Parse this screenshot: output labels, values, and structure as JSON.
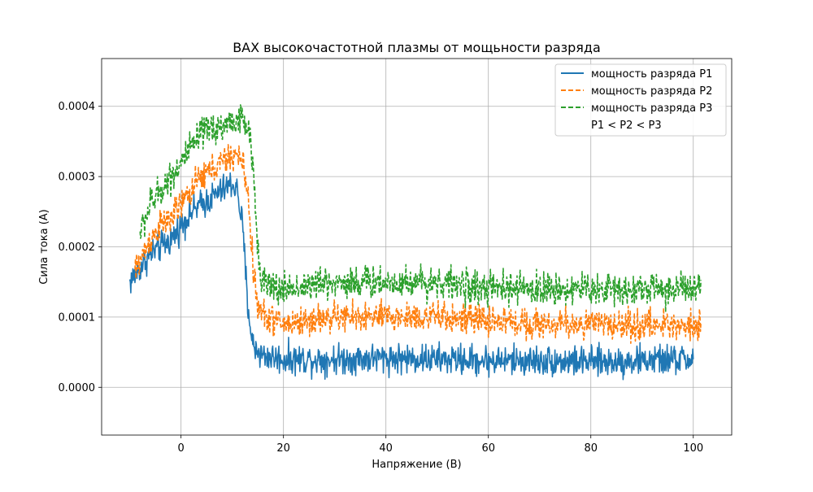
{
  "chart_data": {
    "type": "line",
    "title": "ВАХ высокочастотной плазмы от мощьности разряда",
    "xlabel": "Напряжение (В)",
    "ylabel": "Сила тока (А)",
    "xlim": [
      -15.5,
      107.5
    ],
    "ylim": [
      -6.8e-05,
      0.000468
    ],
    "x_ticks": [
      0,
      20,
      40,
      60,
      80,
      100
    ],
    "x_tick_labels": [
      "0",
      "20",
      "40",
      "60",
      "80",
      "100"
    ],
    "y_ticks": [
      0,
      0.0001,
      0.0002,
      0.0003,
      0.0004
    ],
    "y_tick_labels": [
      "0.0000",
      "0.0001",
      "0.0002",
      "0.0003",
      "0.0004"
    ],
    "grid": true,
    "legend_position": "top-right",
    "legend_note": "P1 < P2 < P3",
    "x_range": [
      -10,
      101.5
    ],
    "series": [
      {
        "name": "мощность разряда P1",
        "color": "#1f77b4",
        "style": "solid",
        "noise_amplitude": 2e-05,
        "x": [
          -10,
          -9,
          -8,
          -6,
          -4,
          -2,
          0,
          2,
          4,
          6,
          8,
          10,
          11,
          12,
          13,
          14,
          16,
          20,
          30,
          40,
          50,
          60,
          70,
          80,
          90,
          100
        ],
        "y": [
          0.00015,
          0.00016,
          0.00017,
          0.00019,
          0.0002,
          0.00021,
          0.00023,
          0.00025,
          0.00026,
          0.00027,
          0.00028,
          0.00029,
          0.00028,
          0.00023,
          0.00012,
          6e-05,
          4.5e-05,
          4e-05,
          4e-05,
          4.2e-05,
          4e-05,
          3.8e-05,
          3.8e-05,
          3.6e-05,
          3.8e-05,
          4e-05
        ]
      },
      {
        "name": "мощность разряда P2",
        "color": "#ff7f0e",
        "style": "dashed",
        "noise_amplitude": 2e-05,
        "x": [
          -9,
          -8,
          -6,
          -4,
          -2,
          0,
          2,
          4,
          6,
          8,
          10,
          11,
          12,
          13,
          14,
          15,
          17,
          20,
          30,
          40,
          50,
          60,
          70,
          80,
          90,
          101.5
        ],
        "y": [
          0.000165,
          0.00018,
          0.00021,
          0.00023,
          0.00024,
          0.00026,
          0.00028,
          0.0003,
          0.00031,
          0.00032,
          0.00033,
          0.00033,
          0.00032,
          0.00028,
          0.00018,
          0.00011,
          0.0001,
          9e-05,
          0.0001,
          0.0001,
          0.0001,
          9.5e-05,
          9e-05,
          9e-05,
          8.8e-05,
          9e-05
        ]
      },
      {
        "name": "мощность разряда P3",
        "color": "#2ca02c",
        "style": "dashed",
        "noise_amplitude": 2.2e-05,
        "x": [
          -8,
          -6,
          -4,
          -2,
          0,
          2,
          4,
          6,
          8,
          10,
          12,
          13,
          14,
          15,
          16,
          18,
          20,
          30,
          40,
          50,
          60,
          70,
          80,
          90,
          101.5
        ],
        "y": [
          0.00022,
          0.00026,
          0.00028,
          0.0003,
          0.00032,
          0.00034,
          0.00036,
          0.00037,
          0.00037,
          0.00038,
          0.00038,
          0.00037,
          0.00032,
          0.0002,
          0.00015,
          0.00014,
          0.00014,
          0.00015,
          0.00015,
          0.00015,
          0.00014,
          0.00014,
          0.00014,
          0.00014,
          0.00014
        ]
      }
    ]
  }
}
